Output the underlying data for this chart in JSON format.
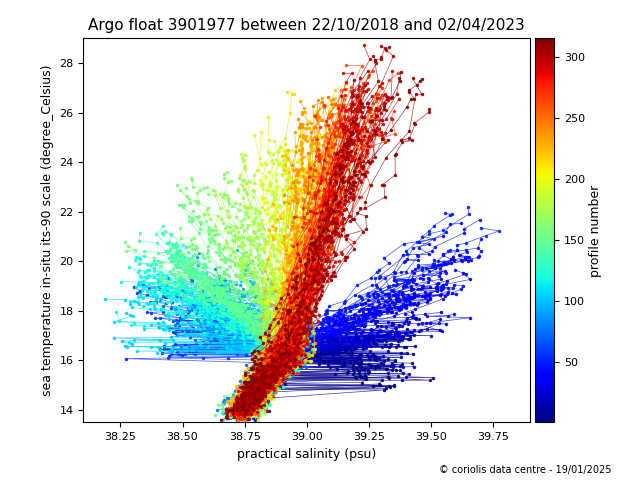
{
  "title": "Argo float 3901977 between 22/10/2018 and 02/04/2023",
  "xlabel": "practical salinity (psu)",
  "ylabel": "sea temperature in-situ its-90 scale (degree_Celsius)",
  "colorbar_label": "profile number",
  "xlim": [
    38.1,
    39.9
  ],
  "ylim": [
    13.5,
    29.0
  ],
  "xticks": [
    38.25,
    38.5,
    38.75,
    39.0,
    39.25,
    39.5,
    39.75
  ],
  "yticks": [
    14,
    16,
    18,
    20,
    22,
    24,
    26,
    28
  ],
  "cmap": "jet",
  "vmin": 1,
  "vmax": 315,
  "colorbar_ticks": [
    50,
    100,
    150,
    200,
    250,
    300
  ],
  "n_profiles": 315,
  "copyright_text": "© coriolis data centre - 19/01/2025",
  "title_fontsize": 11,
  "label_fontsize": 9,
  "tick_fontsize": 8,
  "copyright_fontsize": 7
}
